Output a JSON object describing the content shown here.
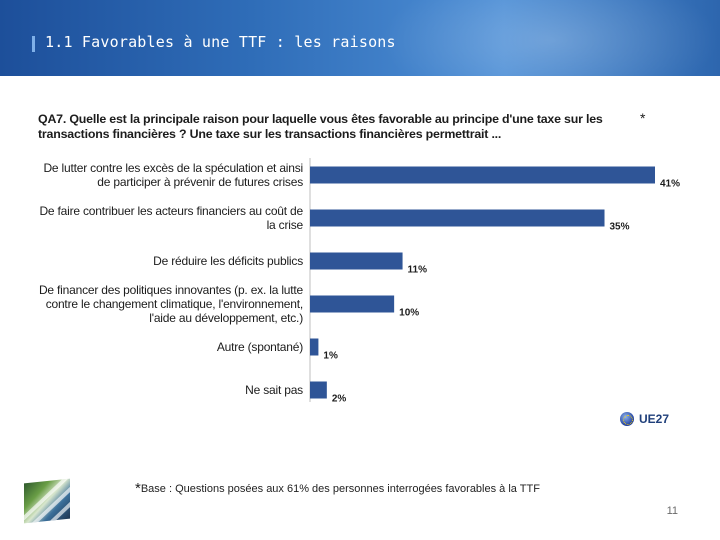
{
  "slide": {
    "title": "1.1 Favorables à une TTF : les raisons",
    "page_number": "11"
  },
  "question": {
    "text": "QA7. Quelle est la principale raison pour laquelle vous êtes favorable au principe d'une taxe sur les transactions financières ? Une taxe sur les transactions financières permettrait ...",
    "marker": "*"
  },
  "footnote": {
    "marker": "*",
    "text": "Base : Questions posées aux 61% des personnes interrogées favorables à la TTF"
  },
  "chart_data": {
    "type": "bar",
    "orientation": "horizontal",
    "categories": [
      [
        "De lutter contre les excès de la spéculation et ainsi",
        "de participer à prévenir de futures crises"
      ],
      [
        "De faire contribuer les acteurs financiers au coût de",
        "la crise"
      ],
      [
        "De réduire les déficits publics"
      ],
      [
        "De financer des politiques innovantes (p. ex. la lutte",
        "contre le changement climatique, l'environnement,",
        "l'aide au développement, etc.)"
      ],
      [
        "Autre (spontané)"
      ],
      [
        "Ne sait pas"
      ]
    ],
    "values": [
      41,
      35,
      11,
      10,
      1,
      2
    ],
    "value_labels": [
      "41%",
      "35%",
      "11%",
      "10%",
      "1%",
      "2%"
    ],
    "series": [
      {
        "name": "UE27",
        "values": [
          41,
          35,
          11,
          10,
          1,
          2
        ]
      }
    ],
    "xlim": [
      0,
      41
    ],
    "legend": "bottom-right",
    "color": "#2f5597"
  }
}
